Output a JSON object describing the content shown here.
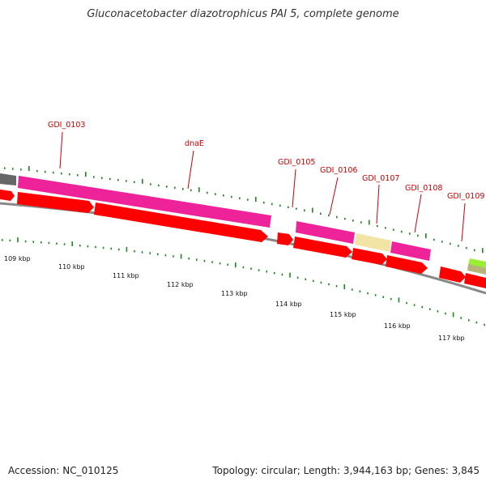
{
  "title": "Gluconacetobacter diazotrophicus PAI 5, complete genome",
  "footer": {
    "accession": "Accession: NC_010125",
    "summary": "Topology: circular; Length: 3,944,163 bp; Genes: 3,845"
  },
  "colors": {
    "cds_forward": "#ff0000",
    "cds_category_magenta": "#ee2299",
    "cds_category_tan": "#f2e4a4",
    "cds_category_lime": "#99ee33",
    "cds_category_olive": "#b5b57a",
    "cds_category_gray": "#666666",
    "backbone": "#888888",
    "tick": "#1a8a1a",
    "label": "#cc0000"
  },
  "gene_labels": [
    {
      "name": "GDI_0103"
    },
    {
      "name": "dnaE"
    },
    {
      "name": "GDI_0105"
    },
    {
      "name": "GDI_0106"
    },
    {
      "name": "GDI_0107"
    },
    {
      "name": "GDI_0108"
    },
    {
      "name": "GDI_0109"
    }
  ],
  "kbp_ticks": [
    "109 kbp",
    "110 kbp",
    "111 kbp",
    "112 kbp",
    "113 kbp",
    "114 kbp",
    "115 kbp",
    "116 kbp",
    "117 kbp"
  ]
}
